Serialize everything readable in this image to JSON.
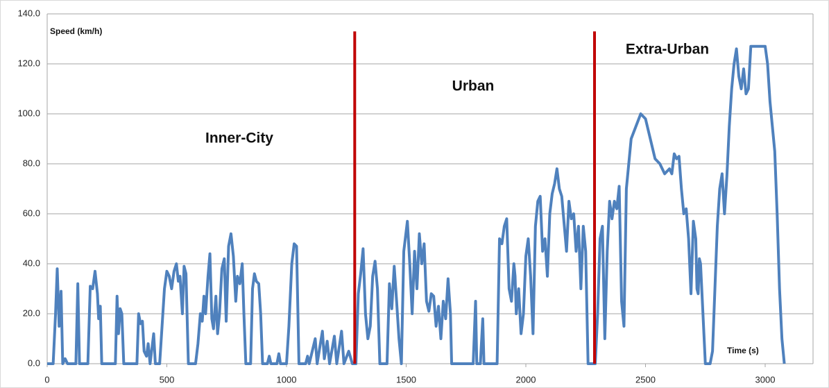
{
  "chart_data": {
    "type": "line",
    "y_label": "Speed (km/h)",
    "x_label": "Time (s)",
    "annotations": [
      "Inner-City",
      "Urban",
      "Extra-Urban"
    ],
    "xlim": [
      0,
      3200
    ],
    "xticks": [
      0,
      500,
      1000,
      1500,
      2000,
      2500,
      3000
    ],
    "ylim": [
      0,
      140
    ],
    "yticks": [
      {
        "value": 0,
        "label": "0.0"
      },
      {
        "value": 20,
        "label": "20.0"
      },
      {
        "value": 40,
        "label": "40.0"
      },
      {
        "value": 60,
        "label": "60.0"
      },
      {
        "value": 80,
        "label": "80.0"
      },
      {
        "value": 100,
        "label": "100.0"
      },
      {
        "value": 120,
        "label": "120.0"
      },
      {
        "value": 140,
        "label": "140.0"
      }
    ],
    "grid": true,
    "markers": [
      {
        "x": 1285,
        "ymax": 133,
        "color": "#c00000"
      },
      {
        "x": 2287,
        "ymax": 133,
        "color": "#c00000"
      }
    ],
    "x": [
      0,
      25,
      35,
      42,
      50,
      58,
      65,
      75,
      85,
      120,
      128,
      135,
      170,
      180,
      190,
      200,
      210,
      215,
      222,
      228,
      285,
      292,
      298,
      305,
      312,
      320,
      375,
      382,
      390,
      398,
      405,
      415,
      422,
      430,
      445,
      452,
      470,
      480,
      490,
      500,
      510,
      520,
      530,
      540,
      548,
      555,
      565,
      572,
      580,
      590,
      620,
      630,
      640,
      648,
      655,
      662,
      672,
      680,
      688,
      695,
      705,
      712,
      720,
      730,
      740,
      748,
      758,
      768,
      778,
      788,
      795,
      805,
      815,
      822,
      830,
      850,
      858,
      866,
      874,
      884,
      892,
      900,
      920,
      928,
      935,
      960,
      968,
      975,
      1000,
      1010,
      1022,
      1032,
      1042,
      1052,
      1080,
      1088,
      1095,
      1120,
      1128,
      1150,
      1158,
      1170,
      1180,
      1200,
      1210,
      1230,
      1240,
      1260,
      1275,
      1290,
      1300,
      1310,
      1320,
      1330,
      1340,
      1350,
      1360,
      1370,
      1380,
      1390,
      1420,
      1430,
      1440,
      1450,
      1460,
      1470,
      1480,
      1490,
      1505,
      1515,
      1525,
      1535,
      1545,
      1555,
      1565,
      1575,
      1585,
      1595,
      1605,
      1615,
      1625,
      1635,
      1645,
      1655,
      1665,
      1675,
      1685,
      1690,
      1780,
      1790,
      1795,
      1810,
      1820,
      1825,
      1880,
      1890,
      1900,
      1910,
      1920,
      1930,
      1940,
      1950,
      1955,
      1960,
      1970,
      1980,
      1990,
      2000,
      2010,
      2020,
      2030,
      2040,
      2050,
      2060,
      2070,
      2080,
      2090,
      2100,
      2110,
      2120,
      2130,
      2140,
      2150,
      2160,
      2170,
      2180,
      2190,
      2200,
      2210,
      2220,
      2230,
      2240,
      2250,
      2260,
      2290,
      2300,
      2310,
      2320,
      2330,
      2340,
      2350,
      2360,
      2370,
      2380,
      2390,
      2400,
      2410,
      2420,
      2430,
      2440,
      2460,
      2480,
      2500,
      2520,
      2540,
      2560,
      2580,
      2600,
      2610,
      2620,
      2630,
      2640,
      2650,
      2660,
      2670,
      2680,
      2690,
      2700,
      2710,
      2715,
      2720,
      2725,
      2730,
      2740,
      2750,
      2770,
      2780,
      2790,
      2800,
      2810,
      2820,
      2830,
      2840,
      2850,
      2860,
      2870,
      2880,
      2890,
      2900,
      2910,
      2920,
      2930,
      2940,
      2960,
      2980,
      3000,
      3010,
      3020,
      3030,
      3040,
      3050,
      3060,
      3070,
      3080
    ],
    "series": [
      {
        "name": "Speed",
        "color": "#4f81bd",
        "values": [
          0,
          0,
          20,
          38,
          15,
          29,
          0,
          2,
          0,
          0,
          32,
          0,
          0,
          31,
          30,
          37,
          28,
          18,
          23,
          0,
          0,
          27,
          12,
          22,
          20,
          0,
          0,
          20,
          16,
          17,
          5,
          3,
          8,
          0,
          12,
          0,
          0,
          15,
          30,
          37,
          35,
          30,
          37,
          40,
          33,
          35,
          20,
          39,
          36,
          0,
          0,
          8,
          20,
          17,
          27,
          20,
          35,
          44,
          18,
          14,
          27,
          12,
          20,
          38,
          42,
          17,
          47,
          52,
          43,
          25,
          35,
          32,
          40,
          20,
          0,
          0,
          30,
          36,
          33,
          32,
          20,
          0,
          0,
          3,
          0,
          0,
          4,
          0,
          0,
          15,
          40,
          48,
          47,
          0,
          0,
          3,
          0,
          10,
          0,
          13,
          2,
          9,
          0,
          11,
          0,
          13,
          0,
          5,
          0,
          0,
          28,
          36,
          46,
          20,
          10,
          15,
          35,
          41,
          30,
          0,
          0,
          32,
          22,
          39,
          25,
          10,
          0,
          45,
          57,
          40,
          20,
          45,
          30,
          52,
          40,
          48,
          25,
          21,
          28,
          27,
          15,
          23,
          10,
          25,
          18,
          34,
          20,
          0,
          0,
          25,
          0,
          0,
          18,
          0,
          0,
          50,
          48,
          55,
          58,
          30,
          25,
          40,
          35,
          20,
          30,
          12,
          20,
          43,
          50,
          35,
          12,
          55,
          65,
          67,
          45,
          50,
          35,
          60,
          68,
          72,
          78,
          70,
          67,
          56,
          45,
          65,
          58,
          60,
          45,
          55,
          30,
          55,
          45,
          0,
          0,
          20,
          50,
          55,
          10,
          45,
          65,
          58,
          65,
          62,
          71,
          25,
          15,
          70,
          80,
          90,
          95,
          100,
          98,
          90,
          82,
          80,
          76,
          78,
          76,
          84,
          82,
          83,
          70,
          60,
          62,
          50,
          28,
          57,
          50,
          30,
          28,
          42,
          40,
          20,
          0,
          0,
          5,
          30,
          55,
          70,
          76,
          60,
          75,
          95,
          110,
          120,
          126,
          115,
          110,
          118,
          108,
          110,
          127,
          127,
          127,
          127,
          120,
          105,
          95,
          85,
          60,
          30,
          10,
          0
        ]
      }
    ]
  }
}
